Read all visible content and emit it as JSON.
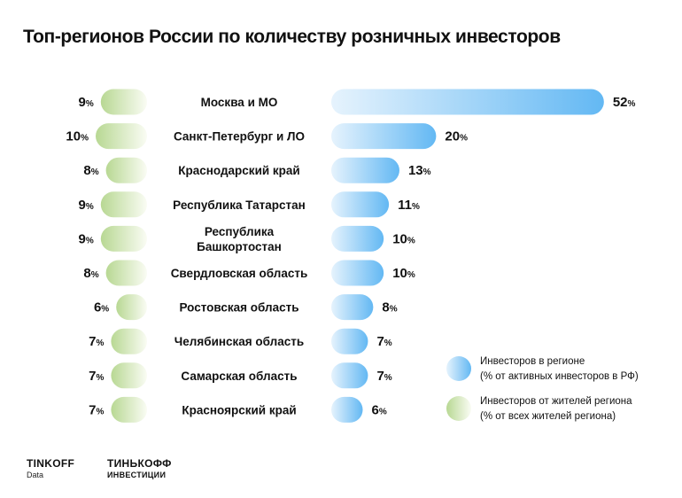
{
  "title": "Топ-регионов России по количеству розничных инвесторов",
  "branding": {
    "brand_a": "TINKOFF",
    "brand_a_sub": "Data",
    "brand_b": "ТИНЬКОФФ",
    "brand_b_sub": "ИНВЕСТИЦИИ"
  },
  "colors": {
    "investors_bar_start": "#e6f3fd",
    "investors_bar_end": "#63b8f3",
    "residents_bar_start": "#fafcf4",
    "residents_bar_end": "#b8d893",
    "text": "#111111"
  },
  "chart_data": {
    "type": "bar",
    "unit": "%",
    "categories": [
      [
        "Москва и МО"
      ],
      [
        "Санкт-Петербург и ЛО"
      ],
      [
        "Краснодарский край"
      ],
      [
        "Республика Татарстан"
      ],
      [
        "Республика",
        "Башкортостан"
      ],
      [
        "Свердловская область"
      ],
      [
        "Ростовская область"
      ],
      [
        "Челябинская область"
      ],
      [
        "Самарская область"
      ],
      [
        "Красноярский край"
      ]
    ],
    "series": [
      {
        "name": "Инвесторов в регионе",
        "name_note": "(% от активных инвесторов в РФ)",
        "values": [
          52,
          20,
          13,
          11,
          10,
          10,
          8,
          7,
          7,
          6
        ]
      },
      {
        "name": "Инвесторов от жителей региона",
        "name_note": "(% от всех жителей региона)",
        "values": [
          9,
          10,
          8,
          9,
          9,
          8,
          6,
          7,
          7,
          7
        ]
      }
    ],
    "legend_position": "right"
  }
}
